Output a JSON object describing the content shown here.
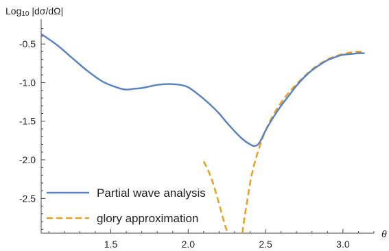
{
  "chart_data": {
    "type": "line",
    "ylabel_prefix": "Log",
    "ylabel_sub": "10",
    "ylabel_rest": " |dσ/dΩ|",
    "xlabel": "θ",
    "xlim": [
      1.05,
      3.2
    ],
    "ylim": [
      -2.95,
      -0.25
    ],
    "xticks": [
      1.5,
      2.0,
      2.5,
      3.0
    ],
    "xtick_labels": [
      "1.5",
      "2.0",
      "2.5",
      "3.0"
    ],
    "yticks": [
      -0.5,
      -1.0,
      -1.5,
      -2.0,
      -2.5
    ],
    "ytick_labels": [
      "-0.5",
      "-1.0",
      "-1.5",
      "-2.0",
      "-2.5"
    ],
    "grid": false,
    "legend_position": "bottom-left",
    "series": [
      {
        "name": "Partial wave analysis",
        "color": "#5b83be",
        "style": "solid",
        "x": [
          1.05,
          1.15,
          1.25,
          1.35,
          1.45,
          1.55,
          1.6,
          1.65,
          1.7,
          1.75,
          1.8,
          1.85,
          1.9,
          1.95,
          2.0,
          2.05,
          2.1,
          2.15,
          2.2,
          2.25,
          2.3,
          2.35,
          2.4,
          2.43,
          2.46,
          2.5,
          2.55,
          2.6,
          2.65,
          2.7,
          2.75,
          2.8,
          2.85,
          2.9,
          2.95,
          3.0,
          3.05,
          3.1,
          3.14
        ],
        "y": [
          -0.37,
          -0.51,
          -0.68,
          -0.85,
          -0.99,
          -1.07,
          -1.09,
          -1.08,
          -1.07,
          -1.05,
          -1.03,
          -1.02,
          -1.02,
          -1.03,
          -1.06,
          -1.13,
          -1.21,
          -1.3,
          -1.4,
          -1.52,
          -1.63,
          -1.73,
          -1.8,
          -1.82,
          -1.78,
          -1.62,
          -1.45,
          -1.3,
          -1.17,
          -1.04,
          -0.93,
          -0.84,
          -0.77,
          -0.71,
          -0.67,
          -0.64,
          -0.63,
          -0.62,
          -0.62
        ]
      },
      {
        "name": "glory approximation",
        "color": "#e8a020",
        "style": "dashed",
        "x": [
          2.1,
          2.13,
          2.16,
          2.19,
          2.22,
          2.24,
          2.255,
          2.265,
          2.35,
          2.36,
          2.38,
          2.41,
          2.45,
          2.5,
          2.55,
          2.6,
          2.65,
          2.7,
          2.75,
          2.8,
          2.85,
          2.9,
          2.95,
          3.0,
          3.05,
          3.1,
          3.14
        ],
        "y": [
          -2.02,
          -2.14,
          -2.3,
          -2.5,
          -2.72,
          -2.86,
          -2.95,
          null,
          -2.95,
          -2.8,
          -2.55,
          -2.2,
          -1.9,
          -1.62,
          -1.42,
          -1.26,
          -1.13,
          -1.02,
          -0.92,
          -0.83,
          -0.76,
          -0.7,
          -0.66,
          -0.63,
          -0.61,
          -0.6,
          -0.6
        ]
      }
    ]
  }
}
